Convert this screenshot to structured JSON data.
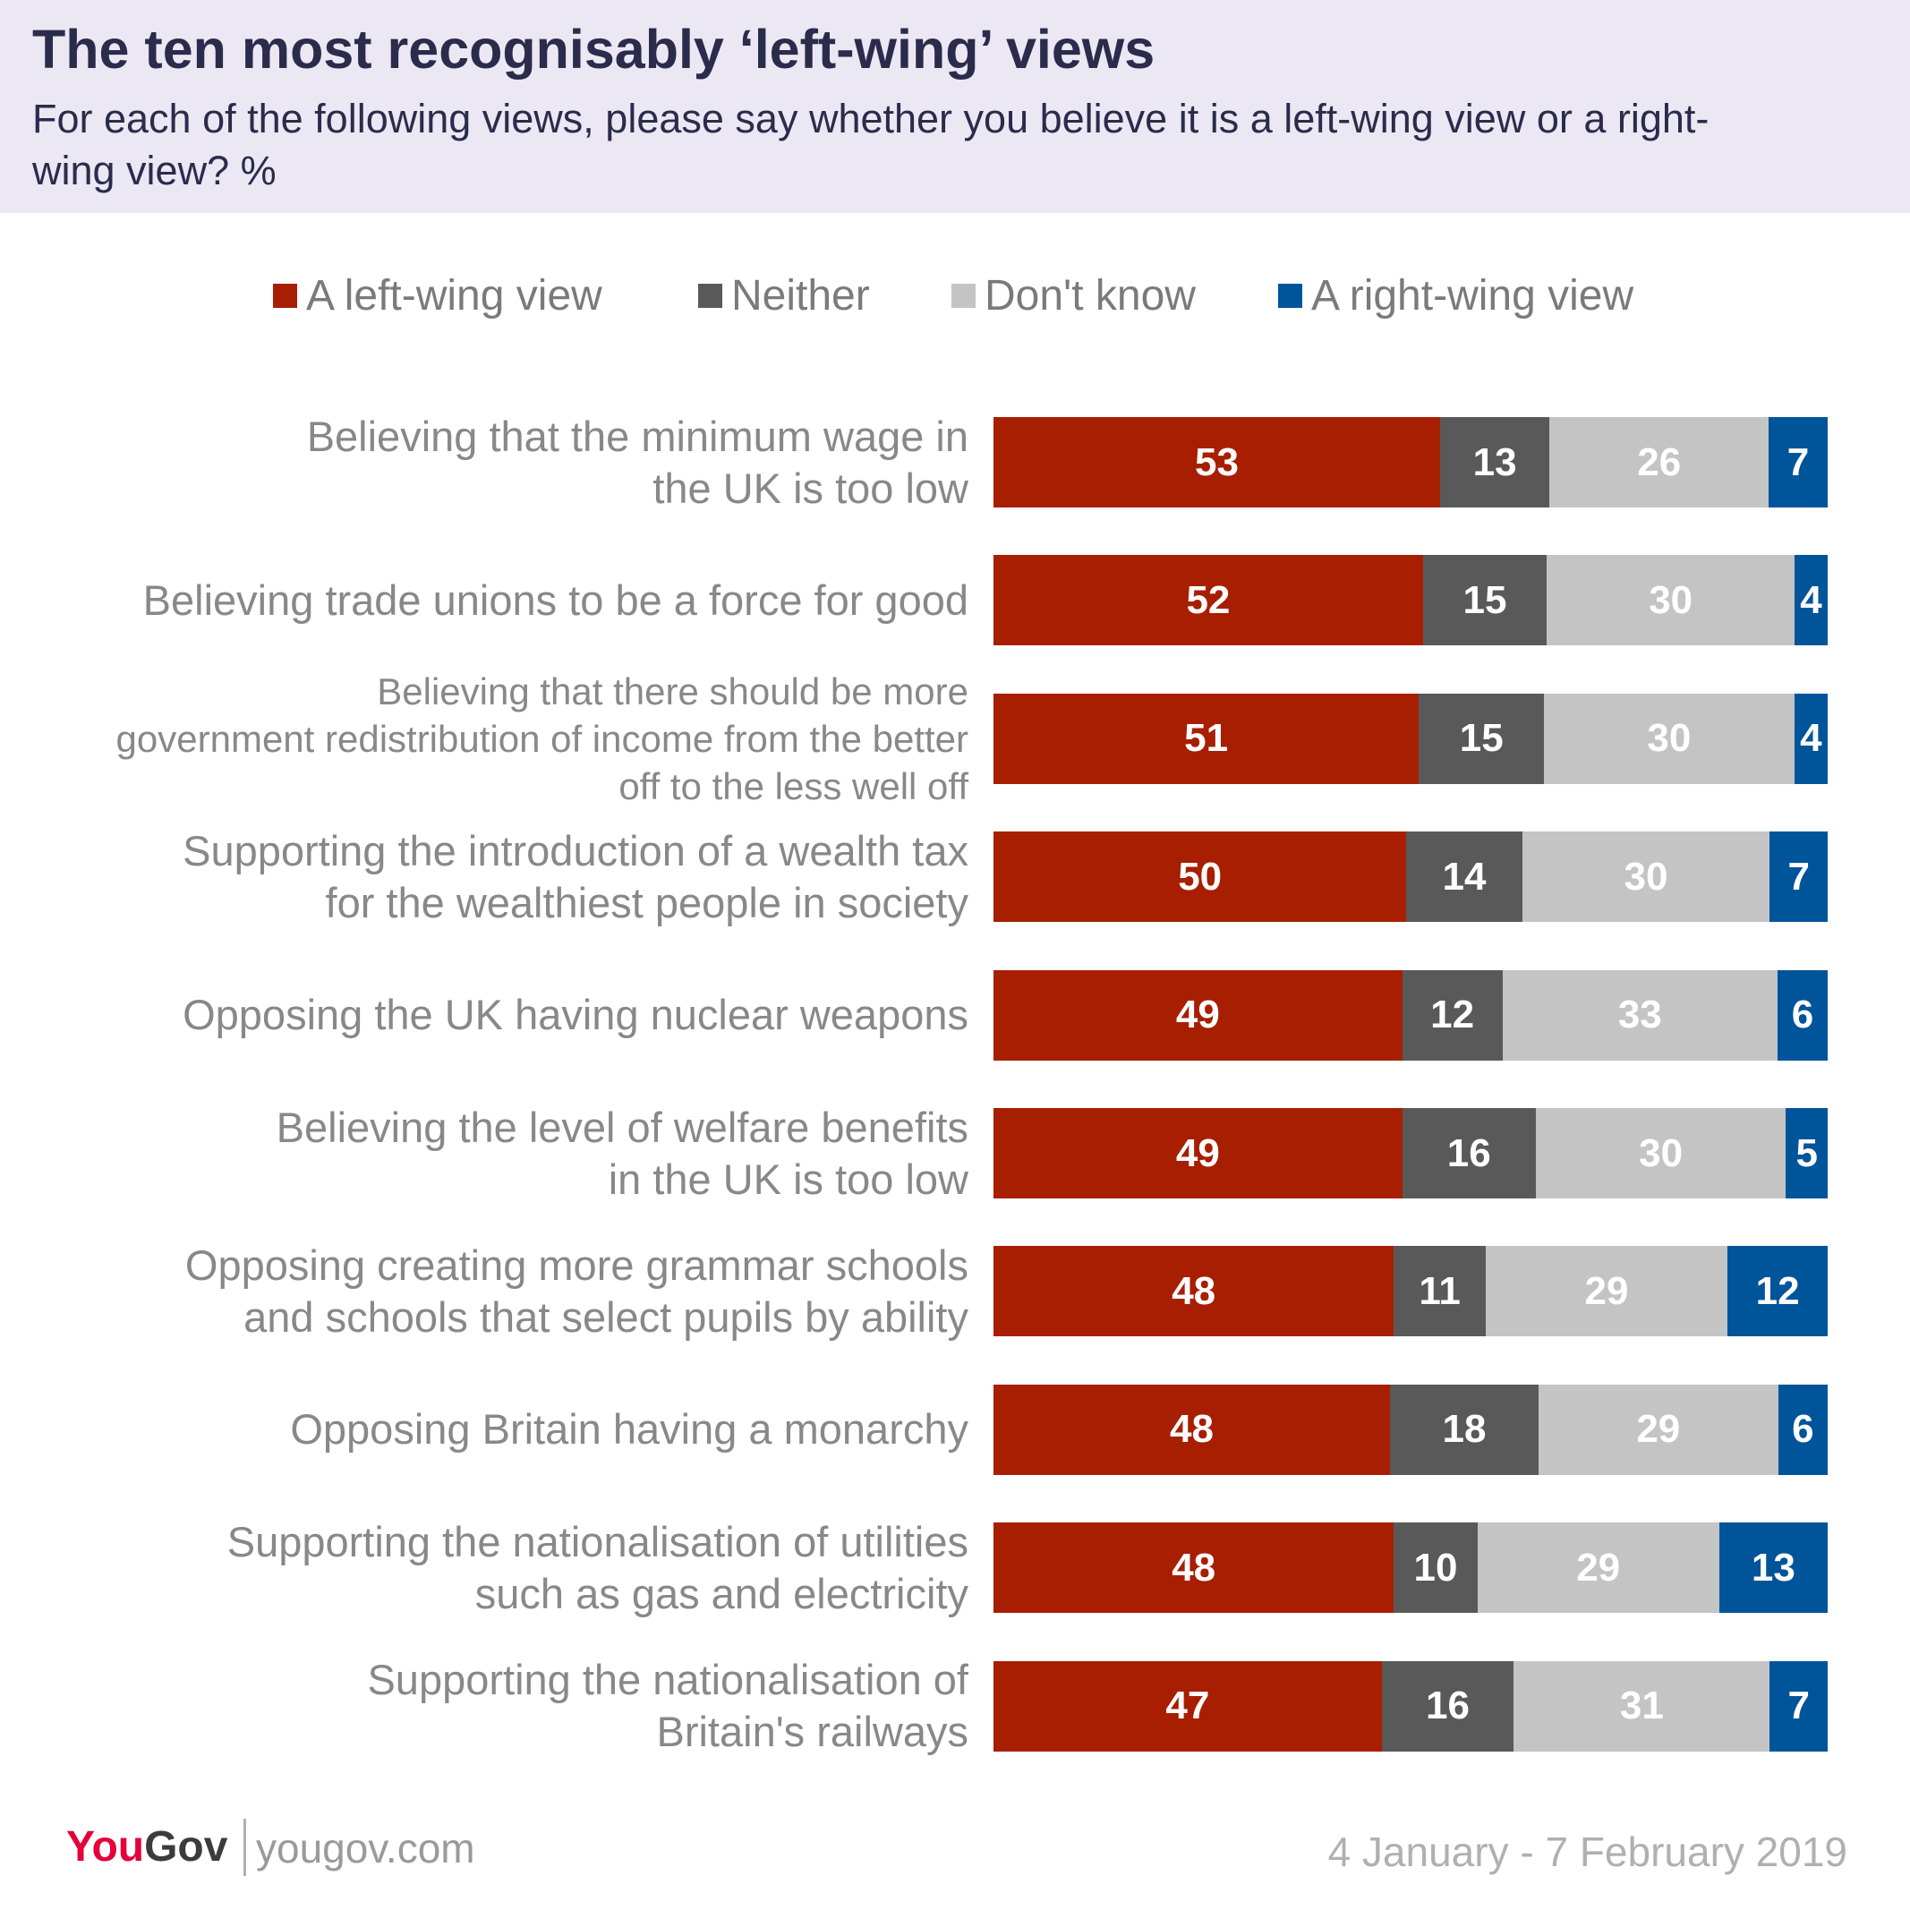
{
  "header": {
    "title": "The ten most recognisably ‘left-wing’ views",
    "subtitle": "For each of the following views, please say whether you believe it is a left-wing view or a right-wing view? %"
  },
  "colors": {
    "left": "#a81e00",
    "neither": "#595959",
    "dont_know": "#c4c4c4",
    "right": "#00549a",
    "header_bg": "#ebe8f4"
  },
  "chart_data": {
    "type": "bar",
    "orientation": "horizontal",
    "stacked": true,
    "legend_position": "top",
    "xlim": [
      0,
      100
    ],
    "categories": [
      "Believing that the minimum wage in the UK is too low",
      "Believing trade unions to be a force for good",
      "Believing that there should be more government redistribution of income from the better off to the less well off",
      "Supporting the introduction of a wealth tax for the wealthiest people in society",
      "Opposing the UK having nuclear weapons",
      "Believing the level of welfare benefits in the UK is too low",
      "Opposing creating more grammar schools and schools that select pupils by ability",
      "Opposing Britain having a monarchy",
      "Supporting the nationalisation of utilities such as gas and electricity",
      "Supporting the nationalisation of Britain's railways"
    ],
    "series": [
      {
        "name": "A left-wing view",
        "values": [
          53,
          52,
          51,
          50,
          49,
          49,
          48,
          48,
          48,
          47
        ]
      },
      {
        "name": "Neither",
        "values": [
          13,
          15,
          15,
          14,
          12,
          16,
          11,
          18,
          10,
          16
        ]
      },
      {
        "name": "Don't know",
        "values": [
          26,
          30,
          30,
          30,
          33,
          30,
          29,
          29,
          29,
          31
        ]
      },
      {
        "name": "A right-wing view",
        "values": [
          7,
          4,
          4,
          7,
          6,
          5,
          12,
          6,
          13,
          7
        ]
      }
    ]
  },
  "footer": {
    "logo_you": "You",
    "logo_gov": "Gov",
    "site": "yougov.com",
    "date": "4 January - 7 February 2019"
  }
}
